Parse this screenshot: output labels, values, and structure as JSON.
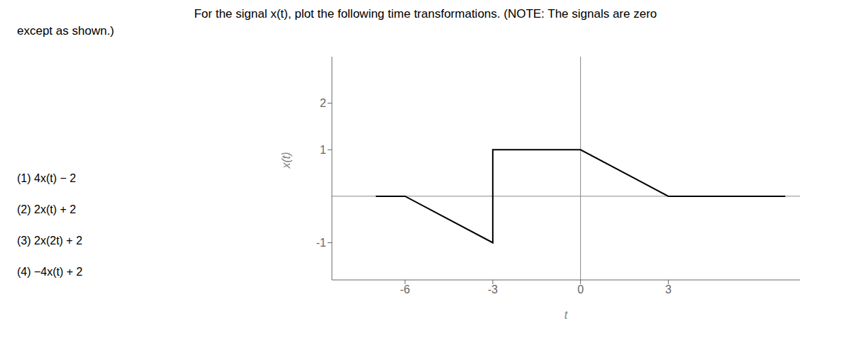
{
  "chart_data": {
    "type": "line",
    "title": "For the signal x(t), plot the following time transformations.  (NOTE: The signals are zero",
    "subtitle": "except as shown.)",
    "xlabel": "t",
    "ylabel": "x(t)",
    "x": [
      -7,
      -6,
      -3,
      -3,
      0,
      3,
      7
    ],
    "values": [
      0,
      0,
      -1,
      1,
      1,
      0,
      0
    ],
    "color": "#000000",
    "xlim": [
      -8.5,
      7.5
    ],
    "xticks": [
      -6,
      -3,
      0,
      3
    ],
    "ylim": [
      -1.8,
      3.0
    ],
    "yticks": [
      -1,
      1,
      2
    ],
    "grid": false,
    "annotations": [
      "(1)  4x(t) − 2",
      "(2)  2x(t) + 2",
      "(3)  2x(2t) + 2",
      "(4)  −4x(t) + 2"
    ]
  }
}
